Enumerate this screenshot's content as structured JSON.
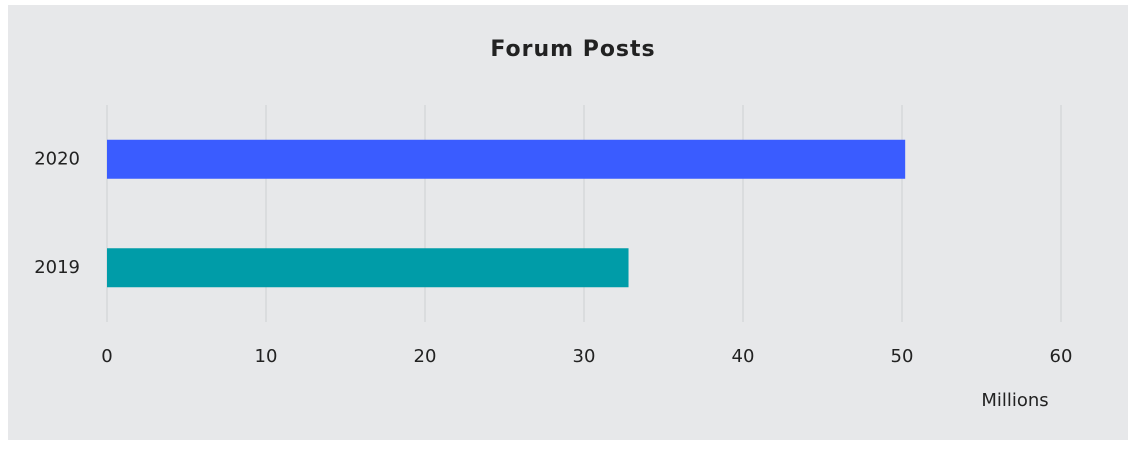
{
  "chart_data": {
    "type": "hbar",
    "title": "Forum Posts",
    "x_label": "Millions",
    "categories": [
      "2020",
      "2019"
    ],
    "values": [
      50.2,
      32.8
    ],
    "colors": [
      "#3a5cff",
      "#009ca8"
    ],
    "xlim": [
      0,
      60
    ],
    "xticks": [
      0,
      10,
      20,
      30,
      40,
      50,
      60
    ],
    "grid": true
  }
}
